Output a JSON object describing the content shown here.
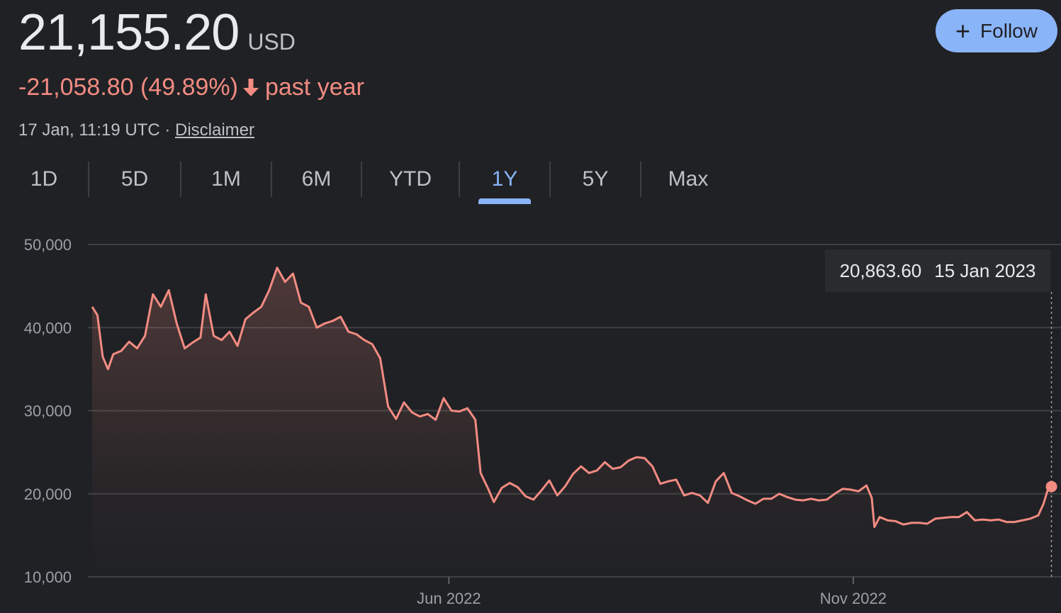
{
  "quote": {
    "price": "21,155.20",
    "currency": "USD",
    "change": "-21,058.80 (49.89%)",
    "change_period": "past year",
    "timestamp": "17 Jan, 11:19 UTC",
    "separator": " · ",
    "disclaimer": "Disclaimer",
    "down_color": "#f28b82"
  },
  "follow_button": {
    "label": "Follow",
    "icon": "plus-icon",
    "color": "#8ab4f8"
  },
  "range_tabs": {
    "items": [
      "1D",
      "5D",
      "1M",
      "6M",
      "YTD",
      "1Y",
      "5Y",
      "Max"
    ],
    "selected": "1Y"
  },
  "tooltip": {
    "value": "20,863.60",
    "date": "15 Jan 2023"
  },
  "chart_data": {
    "type": "area",
    "line_color": "#f28b82",
    "grid": true,
    "ylim": [
      10000,
      50000
    ],
    "y_ticks": [
      50000,
      40000,
      30000,
      20000,
      10000
    ],
    "y_tick_labels": [
      "50,000",
      "40,000",
      "30,000",
      "20,000",
      "10,000"
    ],
    "x_ticks": [
      {
        "label": "Jun 2022",
        "date": "2022-06-01"
      },
      {
        "label": "Nov 2022",
        "date": "2022-11-01"
      }
    ],
    "xlim": [
      "2022-01-17",
      "2023-01-17"
    ],
    "series": [
      {
        "points": [
          [
            "2022-01-17",
            42500
          ],
          [
            "2022-01-19",
            41500
          ],
          [
            "2022-01-21",
            36500
          ],
          [
            "2022-01-23",
            35000
          ],
          [
            "2022-01-25",
            36800
          ],
          [
            "2022-01-28",
            37200
          ],
          [
            "2022-01-31",
            38300
          ],
          [
            "2022-02-03",
            37500
          ],
          [
            "2022-02-06",
            39000
          ],
          [
            "2022-02-09",
            44000
          ],
          [
            "2022-02-12",
            42500
          ],
          [
            "2022-02-15",
            44500
          ],
          [
            "2022-02-18",
            40500
          ],
          [
            "2022-02-21",
            37500
          ],
          [
            "2022-02-24",
            38200
          ],
          [
            "2022-02-27",
            38800
          ],
          [
            "2022-03-01",
            44000
          ],
          [
            "2022-03-04",
            39000
          ],
          [
            "2022-03-07",
            38500
          ],
          [
            "2022-03-10",
            39500
          ],
          [
            "2022-03-13",
            37800
          ],
          [
            "2022-03-16",
            41000
          ],
          [
            "2022-03-19",
            41800
          ],
          [
            "2022-03-22",
            42500
          ],
          [
            "2022-03-25",
            44500
          ],
          [
            "2022-03-28",
            47200
          ],
          [
            "2022-03-31",
            45500
          ],
          [
            "2022-04-03",
            46500
          ],
          [
            "2022-04-06",
            43000
          ],
          [
            "2022-04-09",
            42500
          ],
          [
            "2022-04-12",
            40000
          ],
          [
            "2022-04-15",
            40500
          ],
          [
            "2022-04-18",
            40800
          ],
          [
            "2022-04-21",
            41300
          ],
          [
            "2022-04-24",
            39500
          ],
          [
            "2022-04-27",
            39200
          ],
          [
            "2022-04-30",
            38500
          ],
          [
            "2022-05-03",
            38000
          ],
          [
            "2022-05-06",
            36300
          ],
          [
            "2022-05-09",
            30500
          ],
          [
            "2022-05-12",
            29000
          ],
          [
            "2022-05-15",
            31000
          ],
          [
            "2022-05-18",
            29800
          ],
          [
            "2022-05-21",
            29300
          ],
          [
            "2022-05-24",
            29600
          ],
          [
            "2022-05-27",
            28900
          ],
          [
            "2022-05-30",
            31500
          ],
          [
            "2022-06-02",
            30000
          ],
          [
            "2022-06-05",
            29900
          ],
          [
            "2022-06-08",
            30300
          ],
          [
            "2022-06-11",
            28900
          ],
          [
            "2022-06-13",
            22500
          ],
          [
            "2022-06-16",
            20500
          ],
          [
            "2022-06-18",
            19000
          ],
          [
            "2022-06-21",
            20700
          ],
          [
            "2022-06-24",
            21300
          ],
          [
            "2022-06-27",
            20800
          ],
          [
            "2022-06-30",
            19700
          ],
          [
            "2022-07-03",
            19300
          ],
          [
            "2022-07-06",
            20400
          ],
          [
            "2022-07-09",
            21600
          ],
          [
            "2022-07-12",
            19800
          ],
          [
            "2022-07-15",
            20900
          ],
          [
            "2022-07-18",
            22400
          ],
          [
            "2022-07-21",
            23300
          ],
          [
            "2022-07-24",
            22500
          ],
          [
            "2022-07-27",
            22800
          ],
          [
            "2022-07-30",
            23800
          ],
          [
            "2022-08-02",
            23000
          ],
          [
            "2022-08-05",
            23200
          ],
          [
            "2022-08-08",
            24000
          ],
          [
            "2022-08-11",
            24400
          ],
          [
            "2022-08-14",
            24300
          ],
          [
            "2022-08-17",
            23300
          ],
          [
            "2022-08-20",
            21200
          ],
          [
            "2022-08-23",
            21500
          ],
          [
            "2022-08-26",
            21700
          ],
          [
            "2022-08-29",
            19800
          ],
          [
            "2022-09-01",
            20100
          ],
          [
            "2022-09-04",
            19800
          ],
          [
            "2022-09-07",
            18900
          ],
          [
            "2022-09-10",
            21500
          ],
          [
            "2022-09-13",
            22500
          ],
          [
            "2022-09-16",
            20100
          ],
          [
            "2022-09-19",
            19700
          ],
          [
            "2022-09-22",
            19200
          ],
          [
            "2022-09-25",
            18800
          ],
          [
            "2022-09-28",
            19400
          ],
          [
            "2022-10-01",
            19400
          ],
          [
            "2022-10-04",
            20000
          ],
          [
            "2022-10-07",
            19600
          ],
          [
            "2022-10-10",
            19300
          ],
          [
            "2022-10-13",
            19200
          ],
          [
            "2022-10-16",
            19400
          ],
          [
            "2022-10-19",
            19200
          ],
          [
            "2022-10-22",
            19300
          ],
          [
            "2022-10-25",
            20000
          ],
          [
            "2022-10-28",
            20600
          ],
          [
            "2022-10-31",
            20500
          ],
          [
            "2022-11-03",
            20300
          ],
          [
            "2022-11-06",
            21000
          ],
          [
            "2022-11-08",
            19500
          ],
          [
            "2022-11-09",
            16000
          ],
          [
            "2022-11-11",
            17200
          ],
          [
            "2022-11-14",
            16800
          ],
          [
            "2022-11-17",
            16700
          ],
          [
            "2022-11-20",
            16300
          ],
          [
            "2022-11-23",
            16500
          ],
          [
            "2022-11-26",
            16500
          ],
          [
            "2022-11-29",
            16400
          ],
          [
            "2022-12-02",
            17000
          ],
          [
            "2022-12-05",
            17100
          ],
          [
            "2022-12-08",
            17200
          ],
          [
            "2022-12-11",
            17200
          ],
          [
            "2022-12-14",
            17800
          ],
          [
            "2022-12-17",
            16800
          ],
          [
            "2022-12-20",
            16900
          ],
          [
            "2022-12-23",
            16800
          ],
          [
            "2022-12-26",
            16900
          ],
          [
            "2022-12-29",
            16600
          ],
          [
            "2023-01-01",
            16600
          ],
          [
            "2023-01-04",
            16800
          ],
          [
            "2023-01-07",
            17000
          ],
          [
            "2023-01-10",
            17400
          ],
          [
            "2023-01-12",
            18800
          ],
          [
            "2023-01-14",
            20900
          ],
          [
            "2023-01-15",
            20863.6
          ]
        ]
      }
    ]
  }
}
